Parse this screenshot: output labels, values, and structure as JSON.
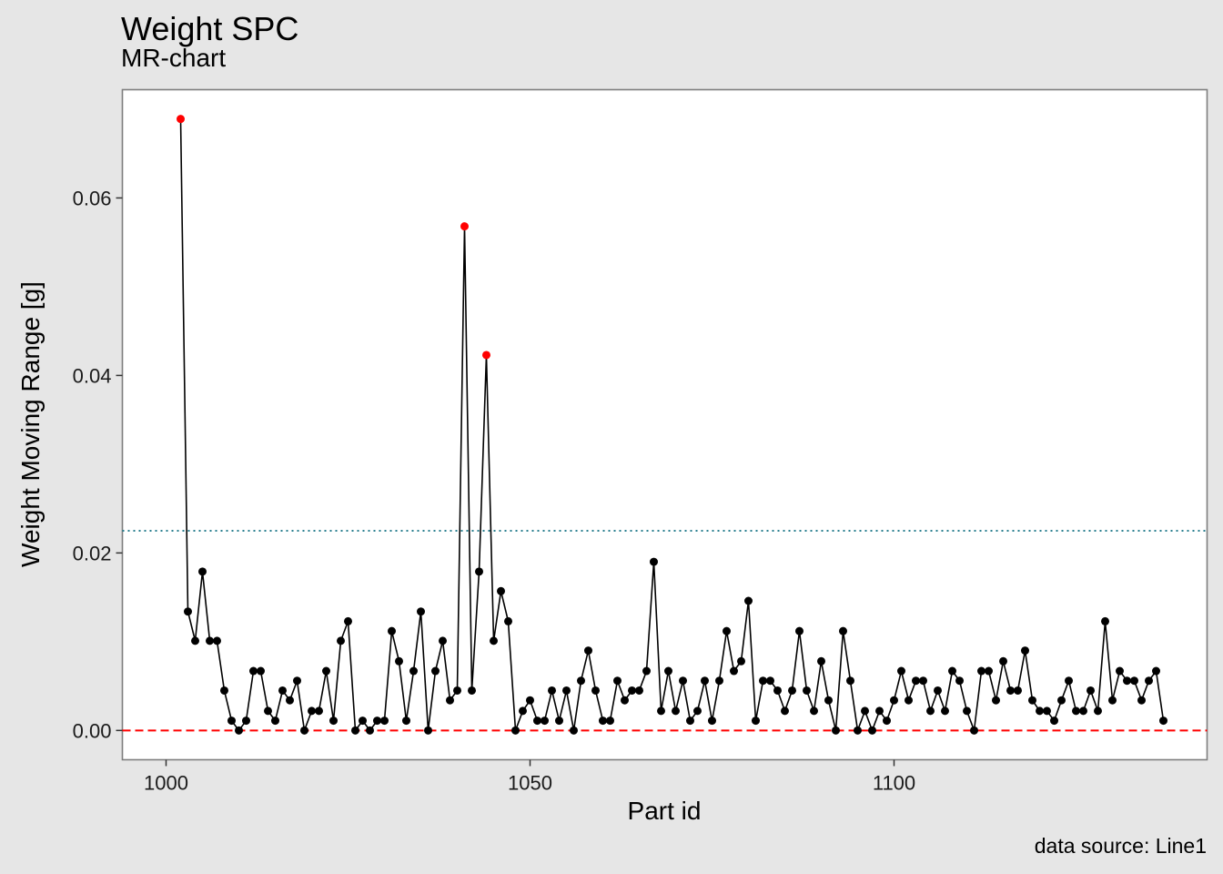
{
  "chart_data": {
    "type": "line",
    "title": "Weight SPC",
    "subtitle": "MR-chart",
    "caption": "data source: Line1",
    "xlabel": "Part id",
    "ylabel": "Weight Moving Range [g]",
    "xlim": [
      994,
      1143
    ],
    "ylim": [
      -0.0033,
      0.0722
    ],
    "x_ticks": [
      1000,
      1050,
      1100
    ],
    "x_tick_labels": [
      "1000",
      "1050",
      "1100"
    ],
    "y_ticks": [
      0,
      0.02,
      0.04,
      0.06
    ],
    "y_tick_labels": [
      "0.00",
      "0.02",
      "0.04",
      "0.06"
    ],
    "grid": false,
    "upper_control_limit": 0.0225,
    "lower_control_limit": 0,
    "colors": {
      "line": "#000000",
      "point": "#000000",
      "out_of_control_point": "#ff0000",
      "ucl_line": "#2a7f8f",
      "lcl_line": "#ff0000",
      "panel_background": "#ffffff",
      "page_background": "#e6e6e6",
      "panel_border": "#7f7f7f"
    },
    "series": [
      {
        "x_start": 1002,
        "x_step": 1,
        "values": [
          0.0689,
          0.0134,
          0.0101,
          0.0179,
          0.0101,
          0.0101,
          0.0045,
          0.0011,
          0.0,
          0.0011,
          0.0067,
          0.0067,
          0.0022,
          0.0011,
          0.0045,
          0.0034,
          0.0056,
          0.0,
          0.0022,
          0.0022,
          0.0067,
          0.0011,
          0.0101,
          0.0123,
          0.0,
          0.0011,
          0.0,
          0.0011,
          0.0011,
          0.0112,
          0.0078,
          0.0011,
          0.0067,
          0.0134,
          0.0,
          0.0067,
          0.0101,
          0.0034,
          0.0045,
          0.0568,
          0.0045,
          0.0179,
          0.0423,
          0.0101,
          0.0157,
          0.0123,
          0.0,
          0.0022,
          0.0034,
          0.0011,
          0.0011,
          0.0045,
          0.0011,
          0.0045,
          0.0,
          0.0056,
          0.009,
          0.0045,
          0.0011,
          0.0011,
          0.0056,
          0.0034,
          0.0045,
          0.0045,
          0.0067,
          0.019,
          0.0022,
          0.0067,
          0.0022,
          0.0056,
          0.0011,
          0.0022,
          0.0056,
          0.0011,
          0.0056,
          0.0112,
          0.0067,
          0.0078,
          0.0146,
          0.0011,
          0.0056,
          0.0056,
          0.0045,
          0.0022,
          0.0045,
          0.0112,
          0.0045,
          0.0022,
          0.0078,
          0.0034,
          0.0,
          0.0112,
          0.0056,
          0.0,
          0.0022,
          0.0,
          0.0022,
          0.0011,
          0.0034,
          0.0067,
          0.0034,
          0.0056,
          0.0056,
          0.0022,
          0.0045,
          0.0022,
          0.0067,
          0.0056,
          0.0022,
          0.0,
          0.0067,
          0.0067,
          0.0034,
          0.0078,
          0.0045,
          0.0045,
          0.009,
          0.0034,
          0.0022,
          0.0022,
          0.0011,
          0.0034,
          0.0056,
          0.0022,
          0.0022,
          0.0045,
          0.0022,
          0.0123,
          0.0034,
          0.0067,
          0.0056,
          0.0056,
          0.0034,
          0.0056,
          0.0067,
          0.0011
        ],
        "out_of_control_indices": [
          0,
          39,
          42
        ]
      }
    ]
  }
}
